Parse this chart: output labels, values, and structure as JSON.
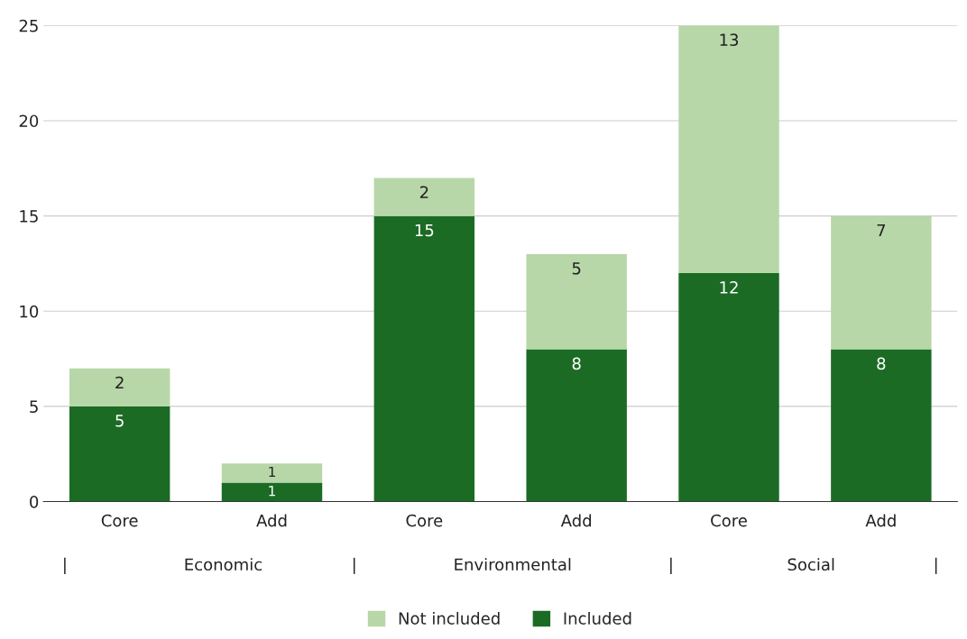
{
  "chart_data": {
    "type": "bar",
    "stacked": true,
    "categories": [
      "Core",
      "Add",
      "Core",
      "Add",
      "Core",
      "Add"
    ],
    "series": [
      {
        "name": "Included",
        "color": "#1b6b25",
        "values": [
          5,
          1,
          15,
          8,
          12,
          8
        ]
      },
      {
        "name": "Not included",
        "color": "#b7d7a8",
        "values": [
          2,
          1,
          2,
          5,
          13,
          7
        ]
      }
    ],
    "ylim": [
      0,
      25
    ],
    "yticks": [
      0,
      5,
      10,
      15,
      20,
      25
    ],
    "grid": "y",
    "legend": "bottom",
    "data_labels": true,
    "annotations": [
      "|",
      "Economic",
      "|",
      "Environmental",
      "|",
      "Social",
      "|"
    ]
  }
}
